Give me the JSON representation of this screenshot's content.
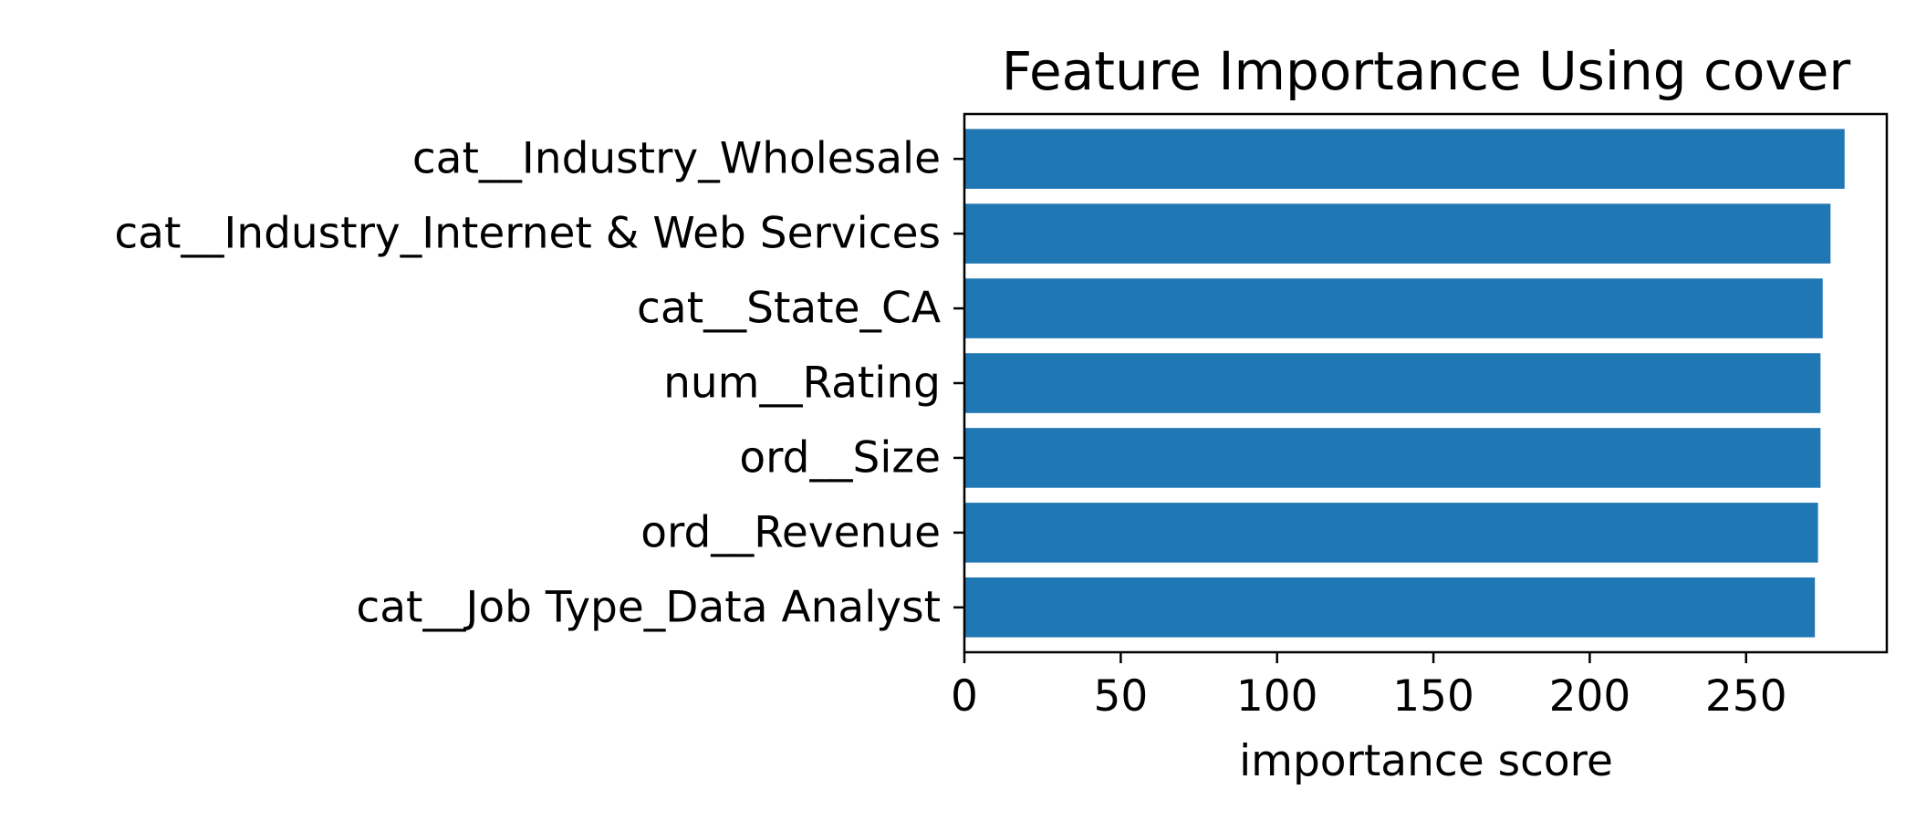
{
  "chart_data": {
    "type": "bar",
    "orientation": "horizontal",
    "title": "Feature Importance Using cover",
    "xlabel": "importance score",
    "ylabel": "",
    "categories": [
      "cat__Industry_Wholesale",
      "cat__Industry_Internet & Web Services",
      "cat__State_CA",
      "num__Rating",
      "ord__Size",
      "ord__Revenue",
      "cat__Job Type_Data Analyst"
    ],
    "values": [
      281.5,
      277.0,
      274.5,
      273.8,
      273.8,
      273.0,
      272.0
    ],
    "xlim": [
      0,
      295
    ],
    "xticks": [
      0,
      50,
      100,
      150,
      200,
      250
    ],
    "xtick_labels": [
      "0",
      "50",
      "100",
      "150",
      "200",
      "250"
    ],
    "grid": false,
    "bar_color": "#1f77b4"
  }
}
